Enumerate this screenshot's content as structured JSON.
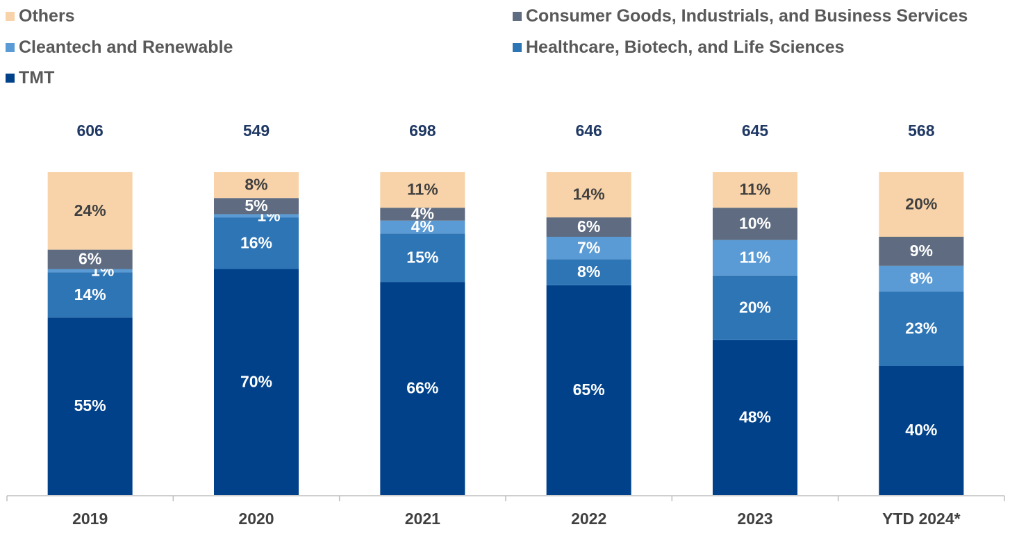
{
  "chart_data": {
    "type": "bar",
    "stacked": true,
    "normalized": true,
    "categories": [
      "2019",
      "2020",
      "2021",
      "2022",
      "2023",
      "YTD 2024*"
    ],
    "totals": [
      "606",
      "549",
      "698",
      "646",
      "645",
      "568"
    ],
    "series": [
      {
        "name": "TMT",
        "color": "#00418a",
        "values": [
          55,
          70,
          66,
          65,
          48,
          40
        ],
        "labels": [
          "55%",
          "70%",
          "66%",
          "65%",
          "48%",
          "40%"
        ]
      },
      {
        "name": "Healthcare, Biotech, and Life Sciences",
        "color": "#2e75b6",
        "values": [
          14,
          16,
          15,
          8,
          20,
          23
        ],
        "labels": [
          "14%",
          "16%",
          "15%",
          "8%",
          "20%",
          "23%"
        ]
      },
      {
        "name": "Cleantech and Renewable",
        "color": "#5b9bd5",
        "values": [
          1,
          1,
          4,
          7,
          11,
          8
        ],
        "labels": [
          "1%",
          "1%",
          "4%",
          "7%",
          "11%",
          "8%"
        ]
      },
      {
        "name": "Consumer Goods, Industrials, and Business Services",
        "color": "#5e6b80",
        "values": [
          6,
          5,
          4,
          6,
          10,
          9
        ],
        "labels": [
          "6%",
          "5%",
          "4%",
          "6%",
          "10%",
          "9%"
        ]
      },
      {
        "name": "Others",
        "color": "#f8d3a9",
        "values": [
          24,
          8,
          11,
          14,
          11,
          20
        ],
        "labels": [
          "24%",
          "8%",
          "11%",
          "14%",
          "11%",
          "20%"
        ]
      }
    ],
    "legend_order": [
      4,
      3,
      2,
      1,
      0
    ],
    "legend_placement": "top",
    "grid": false
  }
}
